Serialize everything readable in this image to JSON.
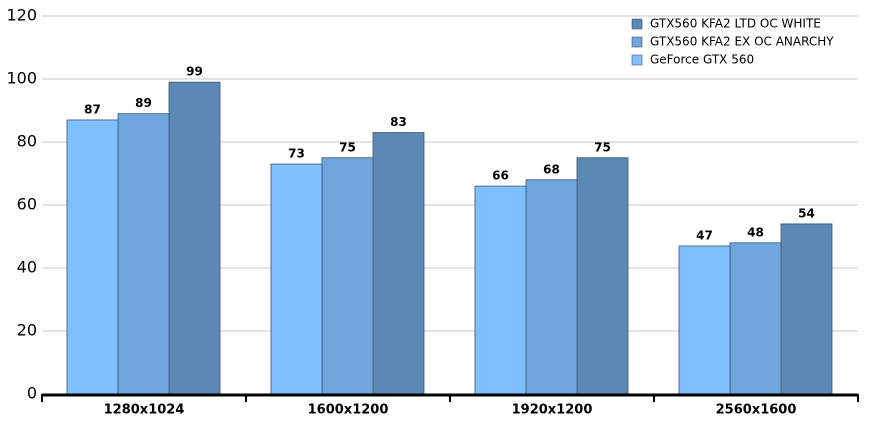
{
  "chart_data": {
    "type": "bar",
    "categories": [
      "1280x1024",
      "1600x1200",
      "1920x1200",
      "2560x1600"
    ],
    "series": [
      {
        "name": "GTX560 KFA2 LTD OC WHITE",
        "color": "#5b88b5",
        "values": [
          99,
          83,
          75,
          54
        ]
      },
      {
        "name": "GTX560 KFA2 EX OC ANARCHY",
        "color": "#6fa6de",
        "values": [
          89,
          75,
          68,
          48
        ]
      },
      {
        "name": "GeForce GTX 560",
        "color": "#80bfff",
        "values": [
          87,
          73,
          66,
          47
        ]
      }
    ],
    "ylim": [
      0,
      120
    ],
    "yticks": [
      0,
      20,
      40,
      60,
      80,
      100,
      120
    ],
    "grid": true,
    "legend": "top-right"
  }
}
